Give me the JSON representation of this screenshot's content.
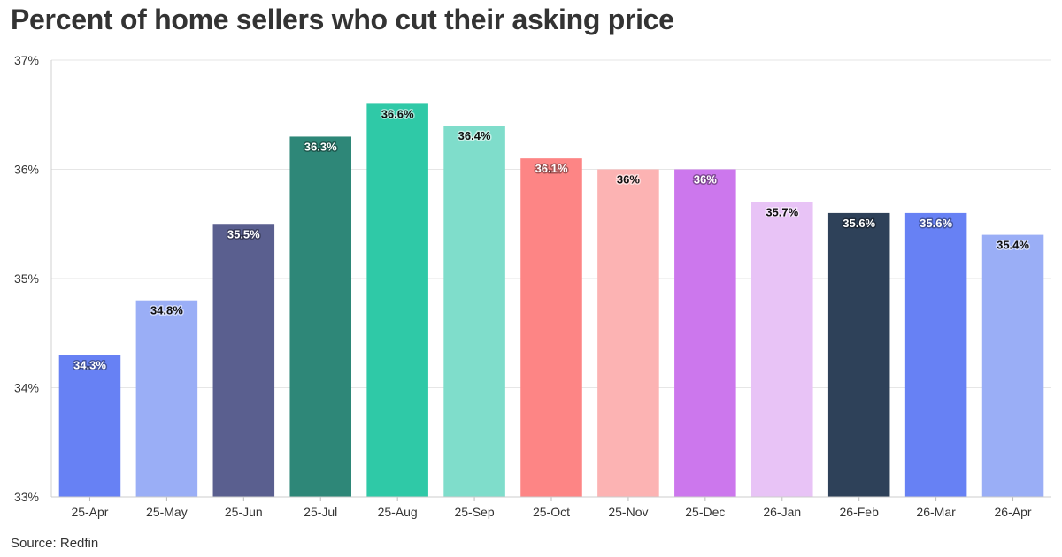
{
  "title": "Percent of home sellers who cut their asking price",
  "source": "Source: Redfin",
  "chart_data": {
    "type": "bar",
    "title": "Percent of home sellers who cut their asking price",
    "xlabel": "",
    "ylabel": "",
    "ylim": [
      33,
      37
    ],
    "yticks": [
      "33%",
      "34%",
      "35%",
      "36%",
      "37%"
    ],
    "ytick_values": [
      33,
      34,
      35,
      36,
      37
    ],
    "grid": true,
    "categories": [
      "25-Apr",
      "25-May",
      "25-Jun",
      "25-Jul",
      "25-Aug",
      "25-Sep",
      "25-Oct",
      "25-Nov",
      "25-Dec",
      "26-Jan",
      "26-Feb",
      "26-Mar",
      "26-Apr"
    ],
    "values": [
      34.3,
      34.8,
      35.5,
      36.3,
      36.6,
      36.4,
      36.1,
      36.0,
      36.0,
      35.7,
      35.6,
      35.6,
      35.4
    ],
    "data_labels": [
      "34.3%",
      "34.8%",
      "35.5%",
      "36.3%",
      "36.6%",
      "36.4%",
      "36.1%",
      "36%",
      "36%",
      "35.7%",
      "35.6%",
      "35.6%",
      "35.4%"
    ],
    "colors": [
      "#6781f4",
      "#9aaef6",
      "#5a5f8f",
      "#2e8778",
      "#2fc9a7",
      "#7fddcb",
      "#fd8585",
      "#fcb3b3",
      "#cc77ed",
      "#e8c3f6",
      "#2e4159",
      "#6781f4",
      "#9aaef6"
    ],
    "label_colors": [
      "#ffffff",
      "#111111",
      "#ffffff",
      "#ffffff",
      "#111111",
      "#111111",
      "#ffffff",
      "#111111",
      "#ffffff",
      "#111111",
      "#ffffff",
      "#ffffff",
      "#111111"
    ]
  }
}
